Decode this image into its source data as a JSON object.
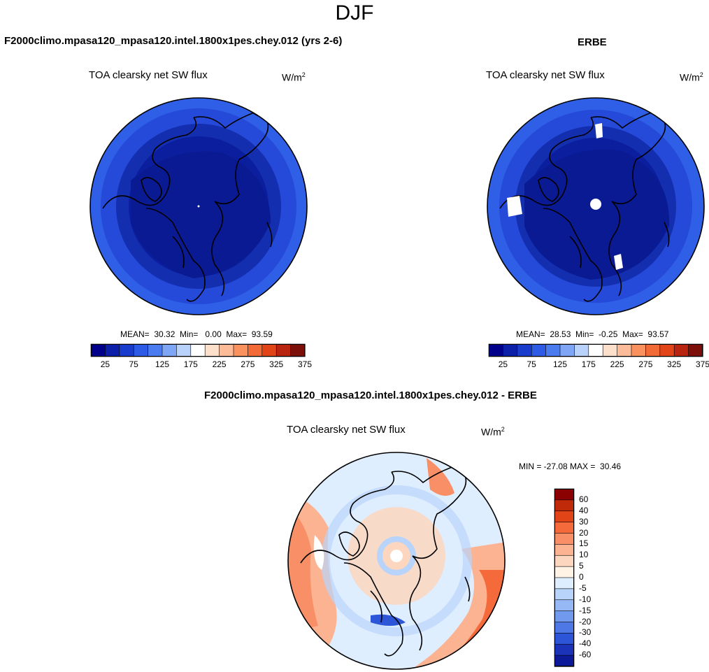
{
  "page": {
    "title": "DJF"
  },
  "panels": [
    {
      "title": "F2000climo.mpasa120_mpasa120.intel.1800x1pes.chey.012 (yrs 2-6)",
      "variable": "TOA clearsky net SW flux",
      "units": "W/m",
      "units_sup": "2",
      "stats": "MEAN=  30.32  Min=   0.00  Max=  93.59"
    },
    {
      "title": "ERBE",
      "variable": "TOA clearsky net SW flux",
      "units": "W/m",
      "units_sup": "2",
      "stats": "MEAN=  28.53  Min=  -0.25  Max=  93.57"
    },
    {
      "title": "F2000climo.mpasa120_mpasa120.intel.1800x1pes.chey.012 - ERBE",
      "variable": "TOA clearsky net SW flux",
      "units": "W/m",
      "units_sup": "2",
      "stats": "MIN = -27.08 MAX =  30.46"
    }
  ],
  "colorbar_abs": {
    "colors": [
      "#00008b",
      "#0b1fa8",
      "#1a3ccc",
      "#2e5be6",
      "#4a7cf0",
      "#7fa6f5",
      "#b9d2fb",
      "#ffffff",
      "#fde0cc",
      "#fcbb99",
      "#f9925f",
      "#f26a35",
      "#e04417",
      "#b82410",
      "#7d0f0a"
    ],
    "labels": [
      "25",
      "75",
      "125",
      "175",
      "225",
      "275",
      "325",
      "375"
    ]
  },
  "colorbar_diff": {
    "colors": [
      "#8b0000",
      "#c02a08",
      "#e04417",
      "#f56a3b",
      "#f98f66",
      "#fbb391",
      "#fdd6c0",
      "#fff3e6",
      "#dfeeff",
      "#b9d4fb",
      "#96b9f6",
      "#7199ee",
      "#4d78e6",
      "#2c55d8",
      "#1a33b8",
      "#0c1a9a"
    ],
    "labels": [
      "60",
      "40",
      "30",
      "20",
      "15",
      "10",
      "5",
      "0",
      "-5",
      "-10",
      "-15",
      "-20",
      "-30",
      "-40",
      "-60"
    ]
  }
}
